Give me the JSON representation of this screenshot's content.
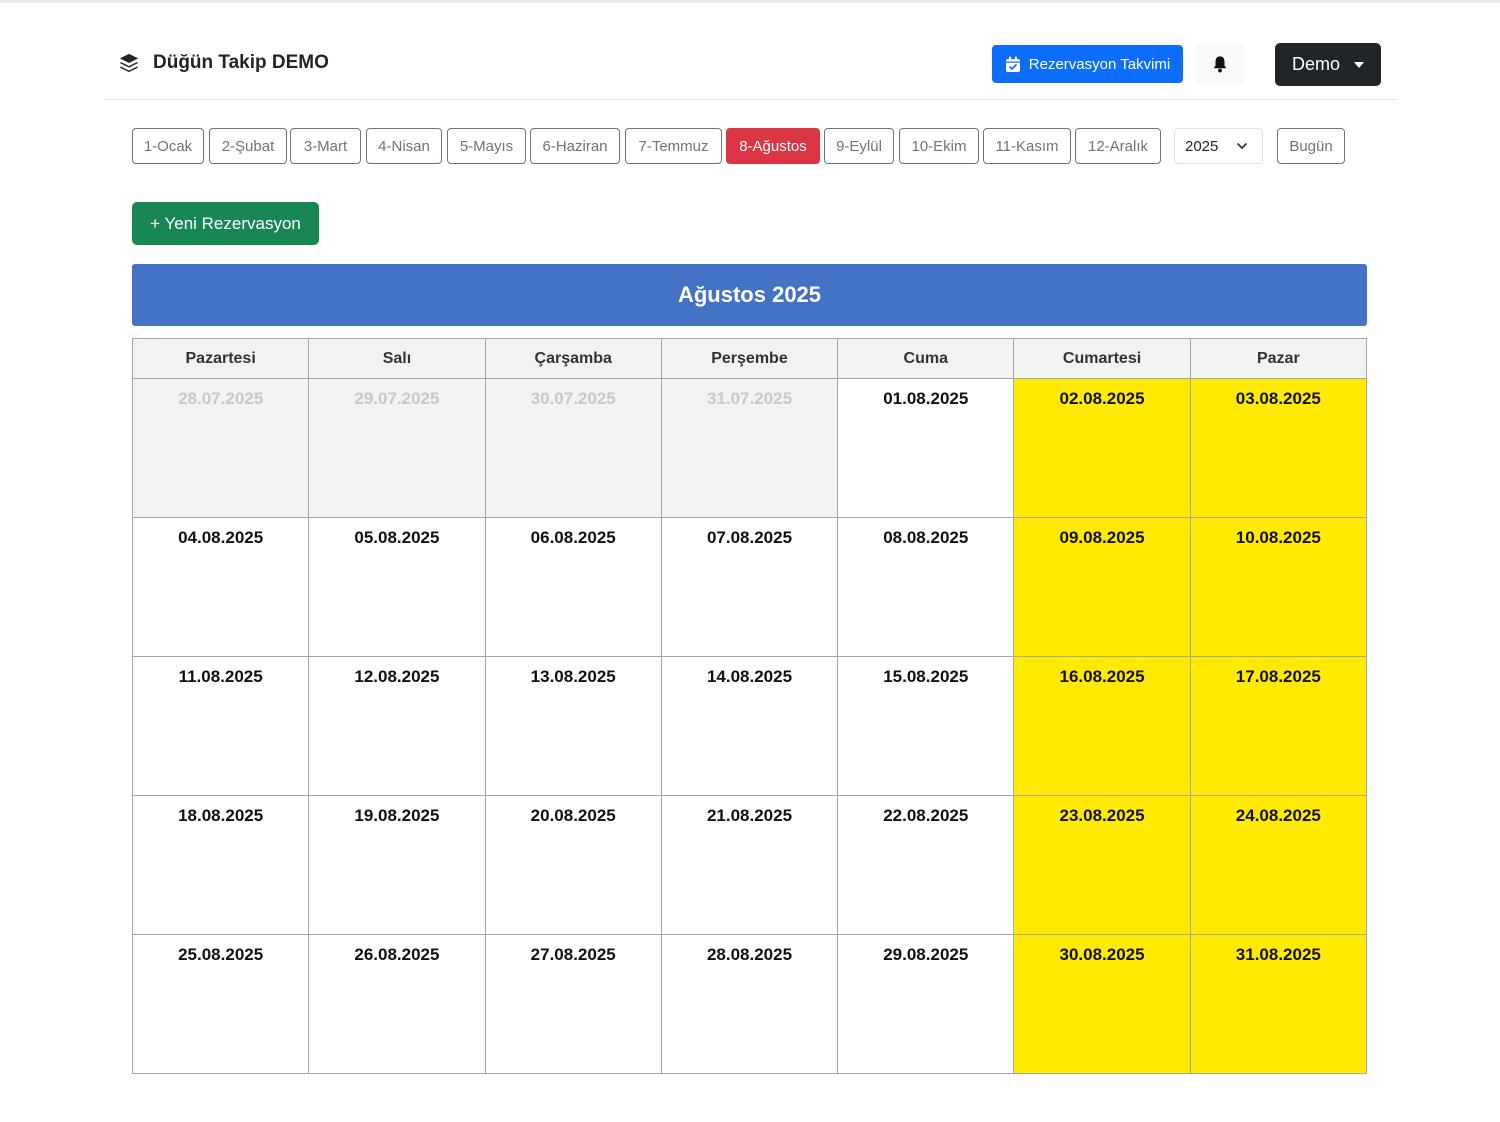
{
  "app": {
    "brand": "Düğün Takip DEMO"
  },
  "navbar": {
    "calendar_button": "Rezervasyon Takvimi",
    "user_menu": "Demo"
  },
  "months": [
    "1-Ocak",
    "2-Şubat",
    "3-Mart",
    "4-Nisan",
    "5-Mayıs",
    "6-Haziran",
    "7-Temmuz",
    "8-Ağustos",
    "9-Eylül",
    "10-Ekim",
    "11-Kasım",
    "12-Aralık"
  ],
  "active_month_index": 7,
  "year_select": {
    "value": "2025"
  },
  "today_button": "Bugün",
  "new_button": "+ Yeni Rezervasyon",
  "calendar": {
    "title": "Ağustos 2025",
    "weekdays": [
      "Pazartesi",
      "Salı",
      "Çarşamba",
      "Perşembe",
      "Cuma",
      "Cumartesi",
      "Pazar"
    ],
    "weeks": [
      [
        "28.07.2025",
        "29.07.2025",
        "30.07.2025",
        "31.07.2025",
        "01.08.2025",
        "02.08.2025",
        "03.08.2025"
      ],
      [
        "04.08.2025",
        "05.08.2025",
        "06.08.2025",
        "07.08.2025",
        "08.08.2025",
        "09.08.2025",
        "10.08.2025"
      ],
      [
        "11.08.2025",
        "12.08.2025",
        "13.08.2025",
        "14.08.2025",
        "15.08.2025",
        "16.08.2025",
        "17.08.2025"
      ],
      [
        "18.08.2025",
        "19.08.2025",
        "20.08.2025",
        "21.08.2025",
        "22.08.2025",
        "23.08.2025",
        "24.08.2025"
      ],
      [
        "25.08.2025",
        "26.08.2025",
        "27.08.2025",
        "28.08.2025",
        "29.08.2025",
        "30.08.2025",
        "31.08.2025"
      ]
    ],
    "other_month_days": [
      "28.07.2025",
      "29.07.2025",
      "30.07.2025",
      "31.07.2025"
    ]
  },
  "colors": {
    "primary": "#0d6efd",
    "active_month": "#dc3545",
    "success": "#198754",
    "calendar_header": "#4472c4",
    "weekend": "#ffea00",
    "other_month": "#f2f2f2"
  }
}
